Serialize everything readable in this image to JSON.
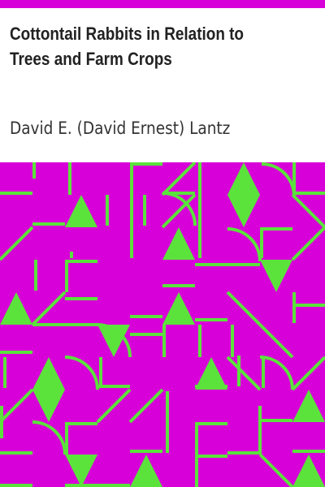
{
  "book": {
    "title": "Cottontail Rabbits in Relation to Trees and Farm Crops",
    "author": "David E. (David Ernest) Lantz"
  },
  "colors": {
    "accent_magenta": "#d800d8",
    "pattern_green": "#5be33c",
    "background": "#ffffff",
    "title_text": "#222222"
  }
}
